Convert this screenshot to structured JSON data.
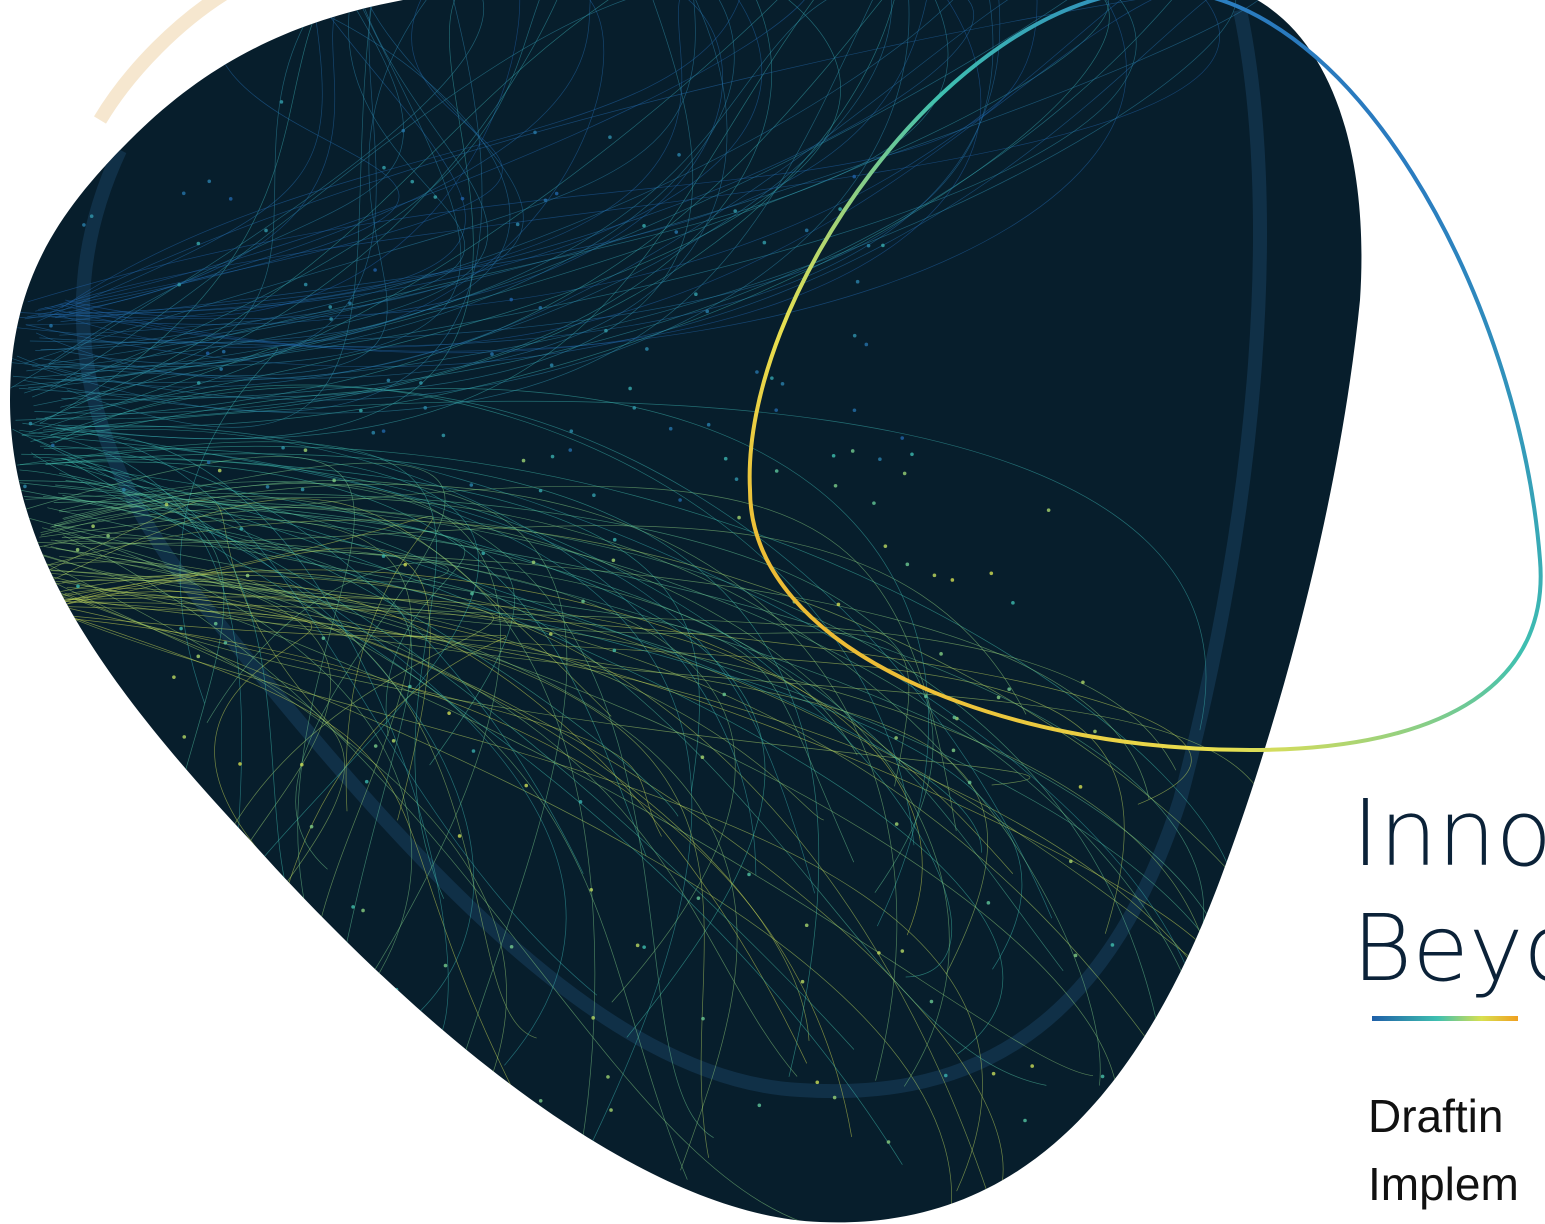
{
  "title": {
    "line1": "Inno",
    "line2": "Beyo"
  },
  "subtitle": {
    "line1": "Draftin",
    "line2": "Implem"
  }
}
